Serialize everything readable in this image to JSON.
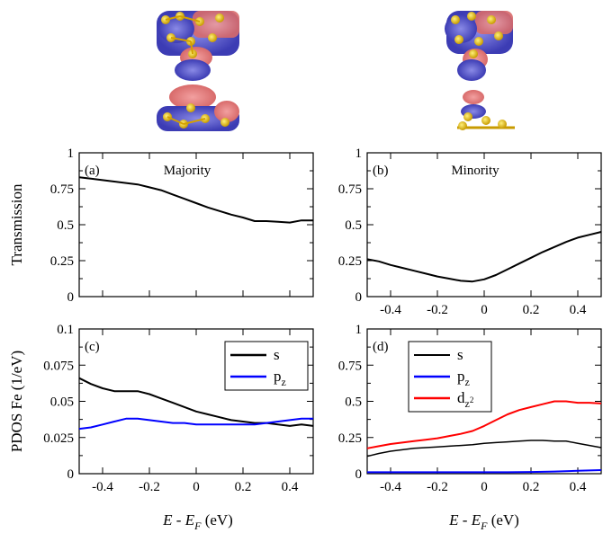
{
  "figure": {
    "shared_xlabel_left": "E - E",
    "shared_xlabel_right": "E - E",
    "xlabel_sub": "F",
    "xlabel_unit": " (eV)"
  },
  "chart_data": [
    {
      "type": "line",
      "panel": "(a)",
      "title": "Majority",
      "ylabel": "Transmission",
      "xlim": [
        -0.5,
        0.5
      ],
      "ylim": [
        0,
        1
      ],
      "xticks": [
        -0.4,
        -0.2,
        0,
        0.2,
        0.4
      ],
      "xticklabels": [
        "-0.4",
        "-0.2",
        "0",
        "0.2",
        "0.4"
      ],
      "yticks": [
        0,
        0.25,
        0.5,
        0.75,
        1
      ],
      "yticklabels": [
        "0",
        "0.25",
        "0.5",
        "0.75",
        "1"
      ],
      "show_xticklabels": false,
      "show_yticklabels": true,
      "series": [
        {
          "name": "",
          "color": "#000000",
          "x": [
            -0.5,
            -0.45,
            -0.4,
            -0.35,
            -0.3,
            -0.25,
            -0.2,
            -0.15,
            -0.1,
            -0.05,
            0,
            0.05,
            0.1,
            0.15,
            0.2,
            0.25,
            0.3,
            0.35,
            0.4,
            0.45,
            0.5
          ],
          "y": [
            0.83,
            0.82,
            0.81,
            0.8,
            0.79,
            0.78,
            0.76,
            0.74,
            0.71,
            0.68,
            0.65,
            0.62,
            0.595,
            0.57,
            0.55,
            0.525,
            0.525,
            0.52,
            0.515,
            0.53,
            0.53
          ]
        }
      ]
    },
    {
      "type": "line",
      "panel": "(b)",
      "title": "Minority",
      "ylabel": "",
      "xlim": [
        -0.5,
        0.5
      ],
      "ylim": [
        0,
        1
      ],
      "xticks": [
        -0.4,
        -0.2,
        0,
        0.2,
        0.4
      ],
      "xticklabels": [
        "-0.4",
        "-0.2",
        "0",
        "0.2",
        "0.4"
      ],
      "yticks": [
        0,
        0.25,
        0.5,
        0.75,
        1
      ],
      "yticklabels": [
        "0",
        "0.25",
        "0.5",
        "0.75",
        "1"
      ],
      "show_xticklabels": true,
      "show_yticklabels": true,
      "series": [
        {
          "name": "",
          "color": "#000000",
          "x": [
            -0.5,
            -0.45,
            -0.4,
            -0.35,
            -0.3,
            -0.25,
            -0.2,
            -0.15,
            -0.1,
            -0.05,
            0,
            0.05,
            0.1,
            0.15,
            0.2,
            0.25,
            0.3,
            0.35,
            0.4,
            0.45,
            0.5
          ],
          "y": [
            0.26,
            0.245,
            0.22,
            0.2,
            0.18,
            0.16,
            0.14,
            0.125,
            0.11,
            0.105,
            0.12,
            0.15,
            0.19,
            0.23,
            0.27,
            0.31,
            0.345,
            0.38,
            0.41,
            0.43,
            0.45
          ]
        }
      ]
    },
    {
      "type": "line",
      "panel": "(c)",
      "title": "",
      "ylabel": "PDOS Fe (1/eV)",
      "xlim": [
        -0.5,
        0.5
      ],
      "ylim": [
        0,
        0.1
      ],
      "xticks": [
        -0.4,
        -0.2,
        0,
        0.2,
        0.4
      ],
      "xticklabels": [
        "-0.4",
        "-0.2",
        "0",
        "0.2",
        "0.4"
      ],
      "yticks": [
        0,
        0.025,
        0.05,
        0.075,
        0.1
      ],
      "yticklabels": [
        "0",
        "0.025",
        "0.05",
        "0.075",
        "0.1"
      ],
      "show_xticklabels": true,
      "show_yticklabels": true,
      "legend": "top-right",
      "series": [
        {
          "name": "s",
          "color": "#000000",
          "width": 2,
          "x": [
            -0.5,
            -0.45,
            -0.4,
            -0.35,
            -0.3,
            -0.25,
            -0.2,
            -0.15,
            -0.1,
            -0.05,
            0,
            0.05,
            0.1,
            0.15,
            0.2,
            0.25,
            0.3,
            0.35,
            0.4,
            0.45,
            0.5
          ],
          "y": [
            0.066,
            0.062,
            0.059,
            0.057,
            0.057,
            0.057,
            0.055,
            0.052,
            0.049,
            0.046,
            0.043,
            0.041,
            0.039,
            0.037,
            0.036,
            0.035,
            0.035,
            0.034,
            0.033,
            0.034,
            0.033
          ]
        },
        {
          "name": "p",
          "sub": "z",
          "color": "#0000ff",
          "width": 2,
          "x": [
            -0.5,
            -0.45,
            -0.4,
            -0.35,
            -0.3,
            -0.25,
            -0.2,
            -0.15,
            -0.1,
            -0.05,
            0,
            0.05,
            0.1,
            0.15,
            0.2,
            0.25,
            0.3,
            0.35,
            0.4,
            0.45,
            0.5
          ],
          "y": [
            0.031,
            0.032,
            0.034,
            0.036,
            0.038,
            0.038,
            0.037,
            0.036,
            0.035,
            0.035,
            0.034,
            0.034,
            0.034,
            0.034,
            0.034,
            0.034,
            0.035,
            0.036,
            0.037,
            0.038,
            0.038
          ]
        }
      ]
    },
    {
      "type": "line",
      "panel": "(d)",
      "title": "",
      "ylabel": "",
      "xlim": [
        -0.5,
        0.5
      ],
      "ylim": [
        0,
        1
      ],
      "xticks": [
        -0.4,
        -0.2,
        0,
        0.2,
        0.4
      ],
      "xticklabels": [
        "-0.4",
        "-0.2",
        "0",
        "0.2",
        "0.4"
      ],
      "yticks": [
        0,
        0.25,
        0.5,
        0.75,
        1
      ],
      "yticklabels": [
        "0",
        "0.25",
        "0.5",
        "0.75",
        "1"
      ],
      "show_xticklabels": true,
      "show_yticklabels": true,
      "legend": "top-left",
      "series": [
        {
          "name": "s",
          "color": "#000000",
          "width": 1.5,
          "x": [
            -0.5,
            -0.45,
            -0.4,
            -0.35,
            -0.3,
            -0.25,
            -0.2,
            -0.15,
            -0.1,
            -0.05,
            0,
            0.05,
            0.1,
            0.15,
            0.2,
            0.25,
            0.3,
            0.35,
            0.4,
            0.45,
            0.5
          ],
          "y": [
            0.12,
            0.14,
            0.155,
            0.165,
            0.175,
            0.18,
            0.185,
            0.19,
            0.195,
            0.2,
            0.21,
            0.215,
            0.22,
            0.225,
            0.23,
            0.23,
            0.225,
            0.225,
            0.21,
            0.195,
            0.18
          ]
        },
        {
          "name": "p",
          "sub": "z",
          "color": "#0000ff",
          "width": 2,
          "x": [
            -0.5,
            -0.4,
            -0.3,
            -0.2,
            -0.1,
            0,
            0.1,
            0.2,
            0.3,
            0.4,
            0.5
          ],
          "y": [
            0.01,
            0.01,
            0.01,
            0.01,
            0.01,
            0.01,
            0.01,
            0.012,
            0.015,
            0.02,
            0.025
          ]
        },
        {
          "name": "d",
          "sub": "z",
          "supsub": "2",
          "color": "#ff0000",
          "width": 2,
          "x": [
            -0.5,
            -0.45,
            -0.4,
            -0.35,
            -0.3,
            -0.25,
            -0.2,
            -0.15,
            -0.1,
            -0.05,
            0,
            0.05,
            0.1,
            0.15,
            0.2,
            0.25,
            0.3,
            0.35,
            0.4,
            0.45,
            0.5
          ],
          "y": [
            0.175,
            0.19,
            0.205,
            0.215,
            0.225,
            0.235,
            0.245,
            0.26,
            0.275,
            0.295,
            0.33,
            0.37,
            0.41,
            0.44,
            0.46,
            0.48,
            0.5,
            0.5,
            0.49,
            0.49,
            0.485
          ]
        }
      ]
    }
  ]
}
